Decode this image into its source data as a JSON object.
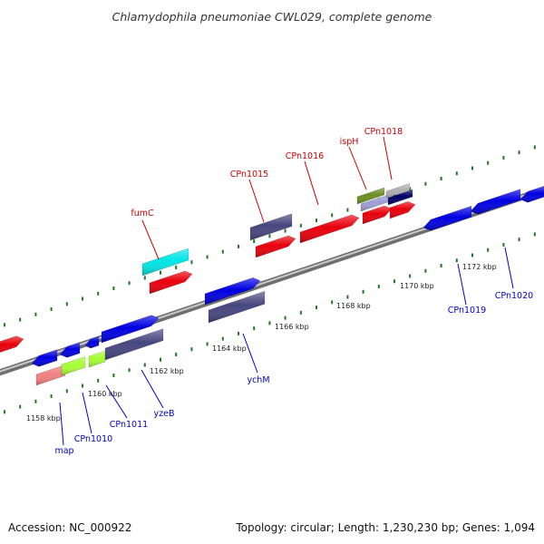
{
  "title": "Chlamydophila pneumoniae CWL029, complete genome",
  "footer": {
    "accession": "Accession: NC_000922",
    "summary": "Topology: circular; Length: 1,230,230 bp; Genes: 1,094"
  },
  "colors": {
    "backbone": "#8a8a8a",
    "tick_marks": "#1f7a1f",
    "label_top": "#cc0000",
    "label_bottom": "#0000cc"
  },
  "kbp_ticks": [
    "1158 kbp",
    "1160 kbp",
    "1162 kbp",
    "1164 kbp",
    "1166 kbp",
    "1168 kbp",
    "1170 kbp",
    "1172 kbp"
  ],
  "gene_labels_top": [
    "fumC",
    "CPn1015",
    "CPn1016",
    "ispH",
    "CPn1018"
  ],
  "gene_labels_bottom": [
    "map",
    "CPn1010",
    "CPn1011",
    "yzeB",
    "ychM",
    "CPn1019",
    "CPn1020"
  ],
  "features": [
    {
      "strand": "forward",
      "color": "#e8000b",
      "label": ""
    },
    {
      "strand": "forward",
      "color": "#00e5e5",
      "label": "fumC"
    },
    {
      "strand": "forward",
      "color": "#e8000b",
      "label": ""
    },
    {
      "strand": "forward",
      "color": "#46467f",
      "label": "CPn1015"
    },
    {
      "strand": "forward",
      "color": "#e8000b",
      "label": "CPn1015"
    },
    {
      "strand": "forward",
      "color": "#e8000b",
      "label": "CPn1016"
    },
    {
      "strand": "forward",
      "color": "#e8000b",
      "label": "ispH"
    },
    {
      "strand": "forward",
      "color": "#6b8e23",
      "label": "ispH"
    },
    {
      "strand": "forward",
      "color": "#9d9dd6",
      "label": "ispH"
    },
    {
      "strand": "forward",
      "color": "#b0b0b0",
      "label": "CPn1018"
    },
    {
      "strand": "forward",
      "color": "#000066",
      "label": "CPn1018"
    },
    {
      "strand": "forward",
      "color": "#e8000b",
      "label": "CPn1018"
    },
    {
      "strand": "reverse",
      "color": "#0000e0",
      "label": "map"
    },
    {
      "strand": "reverse",
      "color": "#0000e0",
      "label": "CPn1010"
    },
    {
      "strand": "reverse",
      "color": "#0000e0",
      "label": "CPn1011"
    },
    {
      "strand": "forward",
      "color": "#0000e0",
      "label": "yzeB"
    },
    {
      "strand": "reverse",
      "color": "#f08080",
      "label": "map"
    },
    {
      "strand": "reverse",
      "color": "#a6ff33",
      "label": "CPn1010"
    },
    {
      "strand": "forward",
      "color": "#a6ff33",
      "label": "CPn1011"
    },
    {
      "strand": "forward",
      "color": "#46467f",
      "label": "yzeB"
    },
    {
      "strand": "forward",
      "color": "#0000e0",
      "label": "ychM"
    },
    {
      "strand": "forward",
      "color": "#46467f",
      "label": "ychM"
    },
    {
      "strand": "reverse",
      "color": "#0000e0",
      "label": "CPn1019"
    },
    {
      "strand": "reverse",
      "color": "#0000e0",
      "label": "CPn1020"
    },
    {
      "strand": "reverse",
      "color": "#0000e0",
      "label": "CPn1020"
    }
  ]
}
